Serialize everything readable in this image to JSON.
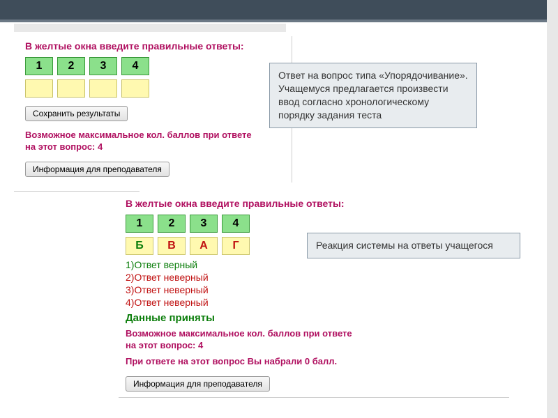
{
  "colors": {
    "topbar_bg": "#3f4d5a",
    "topbar_border": "#6b7885",
    "instruction_text": "#b01060",
    "num_cell_bg": "#8be08b",
    "num_cell_border": "#3a9a3a",
    "ans_cell_bg": "#fff9b0",
    "ans_cell_border": "#c9c36a",
    "correct_text": "#0a7d0a",
    "wrong_text": "#c01010",
    "callout_bg": "#e8ecef",
    "callout_border": "#8a9aa8"
  },
  "section1": {
    "instruction": "В желтые окна введите правильные ответы:",
    "numbers": [
      "1",
      "2",
      "3",
      "4"
    ],
    "answers": [
      "",
      "",
      "",
      ""
    ],
    "save_btn": "Сохранить результаты",
    "score_text": "Возможное максимальное кол. баллов при ответе на этот вопрос: 4",
    "info_btn": "Информация для преподавателя"
  },
  "callout1": {
    "text": "Ответ на вопрос типа «Упорядочивание». Учащемуся предлагается произвести ввод согласно хронологическому порядку задания теста"
  },
  "section2": {
    "instruction": "В желтые окна введите правильные ответы:",
    "numbers": [
      "1",
      "2",
      "3",
      "4"
    ],
    "answers": [
      {
        "v": "Б",
        "ok": true
      },
      {
        "v": "В",
        "ok": false
      },
      {
        "v": "А",
        "ok": false
      },
      {
        "v": "Г",
        "ok": false
      }
    ],
    "feedback": [
      {
        "t": "1)Ответ верный",
        "ok": true
      },
      {
        "t": "2)Ответ неверный",
        "ok": false
      },
      {
        "t": "3)Ответ неверный",
        "ok": false
      },
      {
        "t": "4)Ответ неверный",
        "ok": false
      }
    ],
    "accepted": "Данные приняты",
    "max_score": "Возможное максимальное кол. баллов при ответе на этот вопрос: 4",
    "your_score": "При ответе на этот вопрос Вы набрали 0 балл.",
    "info_btn": "Информация для преподавателя"
  },
  "callout2": {
    "text": "Реакция системы на ответы учащегося"
  }
}
